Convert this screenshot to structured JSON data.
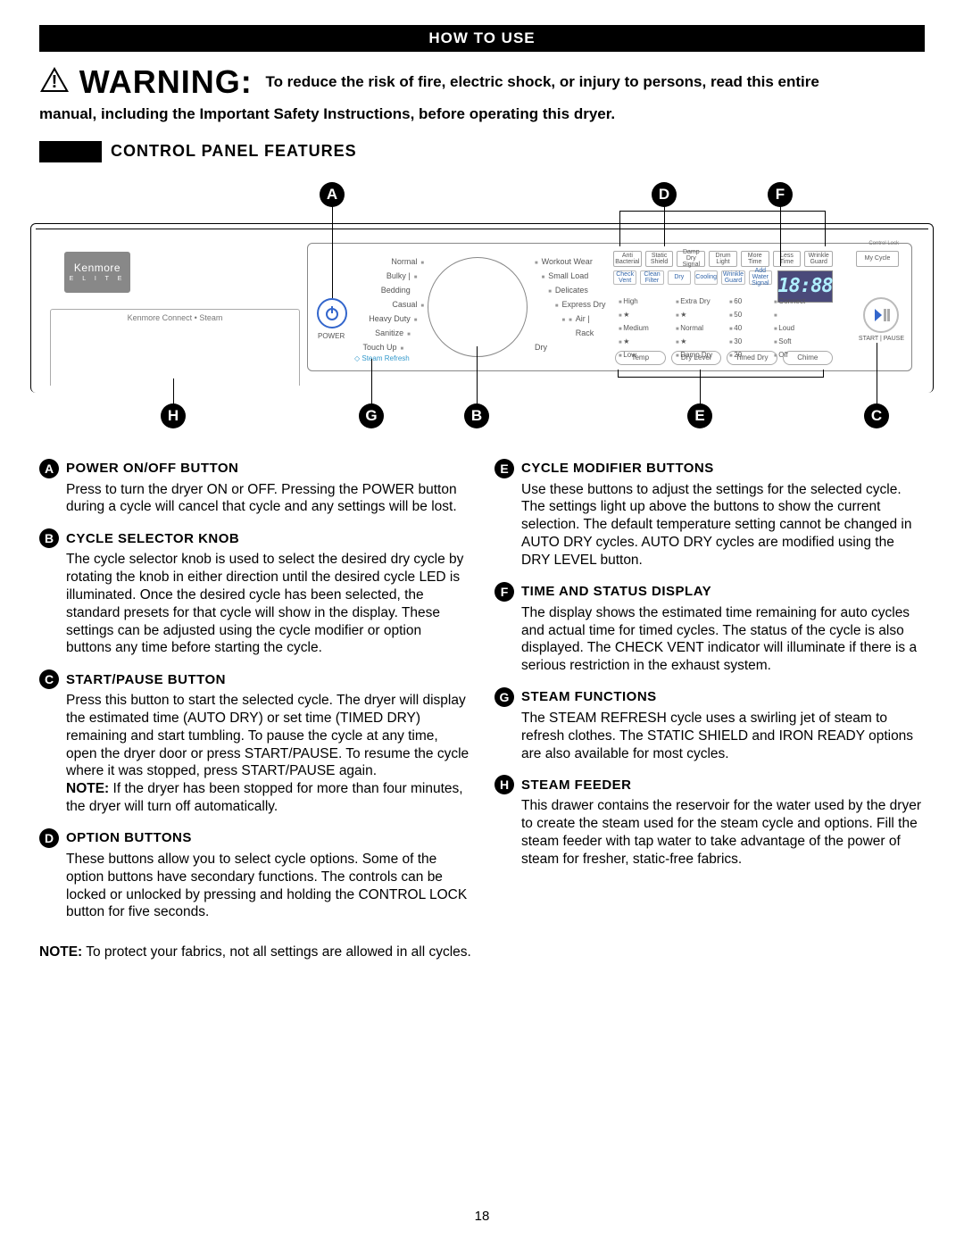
{
  "header": "HOW TO USE",
  "warning_label": "WARNING:",
  "warning_text_1": "To reduce the risk of fire, electric shock, or injury to persons, read this entire",
  "warning_text_2": "manual, including the Important Safety Instructions, before operating this dryer.",
  "section_title": "CONTROL PANEL FEATURES",
  "brand": {
    "name": "Kenmore",
    "line": "E L I T E"
  },
  "drawer_label": "Kenmore Connect  •  Steam",
  "power_label": "POWER",
  "steam_refresh": "◇ Steam Refresh",
  "cycles_left": [
    "Normal",
    "Bulky | Bedding",
    "Casual",
    "Heavy Duty",
    "Sanitize",
    "Touch Up"
  ],
  "cycles_right": [
    "Workout Wear",
    "Small Load",
    "Delicates",
    "Express Dry",
    "",
    "Air | Rack Dry"
  ],
  "options_top": [
    "Anti Bacterial",
    "Static Shield",
    "Damp Dry Signal",
    "Drum Light",
    "More Time",
    "Less Time",
    "Wrinkle Guard"
  ],
  "status_row": [
    "Check Vent",
    "Clean Filter",
    "Dry",
    "Cooling",
    "Wrinkle Guard",
    "Add Water Signal"
  ],
  "display_time": "18:88",
  "mycycle": "My Cycle",
  "control_lock": "Control Lock",
  "startpause": "START | PAUSE",
  "mod_col1_title": "",
  "mod_col1": [
    "High",
    "★",
    "Medium",
    "★",
    "Low"
  ],
  "mod_col2": [
    "Extra Dry",
    "★",
    "Normal",
    "★",
    "Damp Dry"
  ],
  "mod_col3": [
    "60",
    "50",
    "40",
    "30",
    "20"
  ],
  "mod_col4": [
    "Connect",
    "",
    "Loud",
    "Soft",
    "Off"
  ],
  "mod_buttons": [
    "Temp",
    "Dry Level",
    "Timed Dry",
    "Chime"
  ],
  "callouts": {
    "A": "A",
    "B": "B",
    "C": "C",
    "D": "D",
    "E": "E",
    "F": "F",
    "G": "G",
    "H": "H"
  },
  "items_left": [
    {
      "letter": "A",
      "title": "POWER ON/OFF BUTTON",
      "body": "Press to turn the dryer ON or OFF. Pressing the POWER button during a cycle will cancel that cycle and any settings will be lost."
    },
    {
      "letter": "B",
      "title": "CYCLE SELECTOR KNOB",
      "body": "The cycle selector knob is used to select the desired dry cycle by rotating the knob in either direction until the desired cycle LED is illuminated. Once the desired cycle has been selected, the standard presets for that cycle will show in the display. These settings can be adjusted using the cycle modifier or option buttons any time before starting the cycle."
    },
    {
      "letter": "C",
      "title": "START/PAUSE BUTTON",
      "body": "Press this button to start the selected cycle. The dryer will display the estimated time (AUTO DRY) or set time (TIMED DRY) remaining and start tumbling. To pause the cycle at any time, open the dryer door or press START/PAUSE. To resume the cycle where it was stopped, press START/PAUSE again.",
      "note": "NOTE: If the dryer has been stopped for more than four minutes, the dryer will turn off automatically."
    },
    {
      "letter": "D",
      "title": "OPTION BUTTONS",
      "body": "These buttons allow you to select cycle options. Some of the option buttons have secondary functions. The controls can be locked or unlocked by pressing and holding the CONTROL LOCK button for five seconds."
    }
  ],
  "items_right": [
    {
      "letter": "E",
      "title": "CYCLE MODIFIER BUTTONS",
      "body": "Use these buttons to adjust the settings for the selected cycle. The settings light up above the buttons to show the current selection. The default temperature setting cannot be changed in AUTO DRY cycles. AUTO DRY cycles are modified using the DRY LEVEL button."
    },
    {
      "letter": "F",
      "title": "TIME AND STATUS DISPLAY",
      "body": "The display shows the estimated time remaining for auto cycles and actual time for timed cycles. The status of the cycle is also displayed. The CHECK VENT indicator will illuminate if there is a serious restriction in the exhaust system."
    },
    {
      "letter": "G",
      "title": "STEAM FUNCTIONS",
      "body": "The STEAM REFRESH cycle uses a swirling jet of steam to refresh clothes. The STATIC SHIELD and IRON READY options are also available for most cycles."
    },
    {
      "letter": "H",
      "title": "STEAM FEEDER",
      "body": "This drawer contains the reservoir for the water used by the dryer to create the steam used for the steam cycle and options. Fill the steam feeder with tap water to take advantage of the power of steam for fresher, static-free fabrics."
    }
  ],
  "footer_note_lead": "NOTE:",
  "footer_note": " To protect your fabrics, not all settings are allowed in all cycles.",
  "page_number": "18"
}
